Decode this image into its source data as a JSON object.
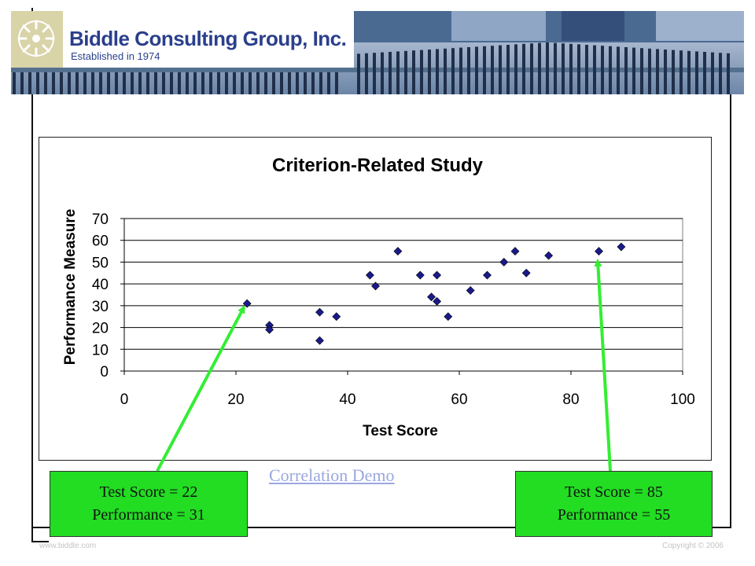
{
  "header": {
    "company": "Biddle Consulting Group, Inc.",
    "established": "Established in 1974",
    "logo_icon": "circular-star-logo-icon",
    "colors": {
      "banner_blue": "#2a3f8c",
      "logo_bg": "#d9d3a8",
      "photo_tone": "#4a6a92"
    }
  },
  "chart_data": {
    "type": "scatter",
    "title": "Criterion-Related Study",
    "xlabel": "Test Score",
    "ylabel": "Performance Measure",
    "xlim": [
      0,
      100
    ],
    "ylim": [
      0,
      70
    ],
    "xticks": [
      "0",
      "20",
      "40",
      "60",
      "80",
      "100"
    ],
    "yticks": [
      "0",
      "10",
      "20",
      "30",
      "40",
      "50",
      "60",
      "70"
    ],
    "grid": "horizontal",
    "legend": "none",
    "marker": "diamond",
    "marker_color": "#1a1a8c",
    "points": [
      {
        "x": 22,
        "y": 31
      },
      {
        "x": 26,
        "y": 21
      },
      {
        "x": 26,
        "y": 19
      },
      {
        "x": 35,
        "y": 27
      },
      {
        "x": 35,
        "y": 14
      },
      {
        "x": 38,
        "y": 25
      },
      {
        "x": 44,
        "y": 44
      },
      {
        "x": 45,
        "y": 39
      },
      {
        "x": 49,
        "y": 55
      },
      {
        "x": 53,
        "y": 44
      },
      {
        "x": 55,
        "y": 34
      },
      {
        "x": 56,
        "y": 32
      },
      {
        "x": 56,
        "y": 44
      },
      {
        "x": 58,
        "y": 25
      },
      {
        "x": 62,
        "y": 37
      },
      {
        "x": 65,
        "y": 44
      },
      {
        "x": 68,
        "y": 50
      },
      {
        "x": 70,
        "y": 55
      },
      {
        "x": 72,
        "y": 45
      },
      {
        "x": 76,
        "y": 53
      },
      {
        "x": 85,
        "y": 55
      },
      {
        "x": 89,
        "y": 57
      }
    ]
  },
  "link": {
    "label": "Correlation Demo"
  },
  "callouts": {
    "left": {
      "line1": "Test Score = 22",
      "line2": "Performance = 31",
      "x": 22,
      "y": 31
    },
    "right": {
      "line1": "Test Score = 85",
      "line2": "Performance = 55",
      "x": 85,
      "y": 55
    },
    "color": "#22dd22",
    "arrow_color": "#33ee33"
  },
  "footer": {
    "left": "www.biddle.com",
    "right": "Copyright © 2006"
  }
}
